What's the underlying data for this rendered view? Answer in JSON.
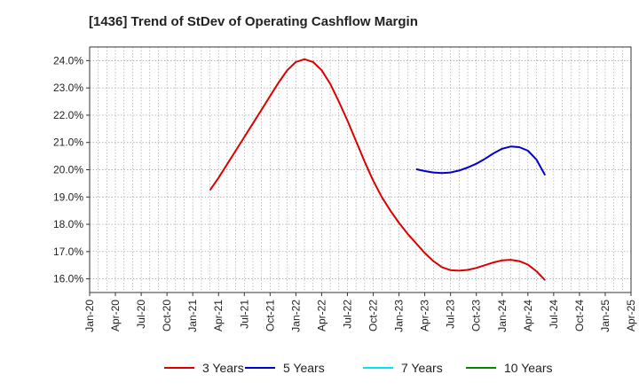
{
  "title": "[1436]  Trend of StDev of Operating Cashflow Margin",
  "chart_data": {
    "type": "line",
    "title": "[1436]  Trend of StDev of Operating Cashflow Margin",
    "xlabel": "",
    "ylabel": "",
    "x_ticks": [
      "Jan-20",
      "Apr-20",
      "Jul-20",
      "Oct-20",
      "Jan-21",
      "Apr-21",
      "Jul-21",
      "Oct-21",
      "Jan-22",
      "Apr-22",
      "Jul-22",
      "Oct-22",
      "Jan-23",
      "Apr-23",
      "Jul-23",
      "Oct-23",
      "Jan-24",
      "Apr-24",
      "Jul-24",
      "Oct-24",
      "Jan-25",
      "Apr-25"
    ],
    "y_ticks": [
      "16.0%",
      "17.0%",
      "18.0%",
      "19.0%",
      "20.0%",
      "21.0%",
      "22.0%",
      "23.0%",
      "24.0%"
    ],
    "ylim": [
      15.5,
      24.5
    ],
    "xlim": [
      "2020-01",
      "2025-04"
    ],
    "grid": true,
    "legend_position": "bottom",
    "series": [
      {
        "name": "3 Years",
        "color": "#dd0000",
        "points": [
          [
            "2021-03",
            19.25
          ],
          [
            "2021-04",
            19.7
          ],
          [
            "2021-05",
            20.2
          ],
          [
            "2021-06",
            20.7
          ],
          [
            "2021-07",
            21.2
          ],
          [
            "2021-08",
            21.7
          ],
          [
            "2021-09",
            22.2
          ],
          [
            "2021-10",
            22.7
          ],
          [
            "2021-11",
            23.2
          ],
          [
            "2021-12",
            23.65
          ],
          [
            "2022-01",
            23.95
          ],
          [
            "2022-02",
            24.05
          ],
          [
            "2022-03",
            23.95
          ],
          [
            "2022-04",
            23.65
          ],
          [
            "2022-05",
            23.15
          ],
          [
            "2022-06",
            22.5
          ],
          [
            "2022-07",
            21.8
          ],
          [
            "2022-08",
            21.05
          ],
          [
            "2022-09",
            20.3
          ],
          [
            "2022-10",
            19.6
          ],
          [
            "2022-11",
            19.0
          ],
          [
            "2022-12",
            18.5
          ],
          [
            "2023-01",
            18.05
          ],
          [
            "2023-02",
            17.65
          ],
          [
            "2023-03",
            17.3
          ],
          [
            "2023-04",
            16.95
          ],
          [
            "2023-05",
            16.65
          ],
          [
            "2023-06",
            16.43
          ],
          [
            "2023-07",
            16.32
          ],
          [
            "2023-08",
            16.3
          ],
          [
            "2023-09",
            16.33
          ],
          [
            "2023-10",
            16.4
          ],
          [
            "2023-11",
            16.5
          ],
          [
            "2023-12",
            16.6
          ],
          [
            "2024-01",
            16.68
          ],
          [
            "2024-02",
            16.7
          ],
          [
            "2024-03",
            16.65
          ],
          [
            "2024-04",
            16.52
          ],
          [
            "2024-05",
            16.28
          ],
          [
            "2024-06",
            15.95
          ]
        ]
      },
      {
        "name": "5 Years",
        "color": "#0000cc",
        "points": [
          [
            "2023-03",
            20.02
          ],
          [
            "2023-04",
            19.95
          ],
          [
            "2023-05",
            19.9
          ],
          [
            "2023-06",
            19.88
          ],
          [
            "2023-07",
            19.9
          ],
          [
            "2023-08",
            19.97
          ],
          [
            "2023-09",
            20.08
          ],
          [
            "2023-10",
            20.22
          ],
          [
            "2023-11",
            20.4
          ],
          [
            "2023-12",
            20.6
          ],
          [
            "2024-01",
            20.77
          ],
          [
            "2024-02",
            20.85
          ],
          [
            "2024-03",
            20.83
          ],
          [
            "2024-04",
            20.7
          ],
          [
            "2024-05",
            20.37
          ],
          [
            "2024-06",
            19.8
          ]
        ]
      },
      {
        "name": "7 Years",
        "color": "#00e5ee",
        "points": []
      },
      {
        "name": "10 Years",
        "color": "#008800",
        "points": []
      }
    ]
  }
}
